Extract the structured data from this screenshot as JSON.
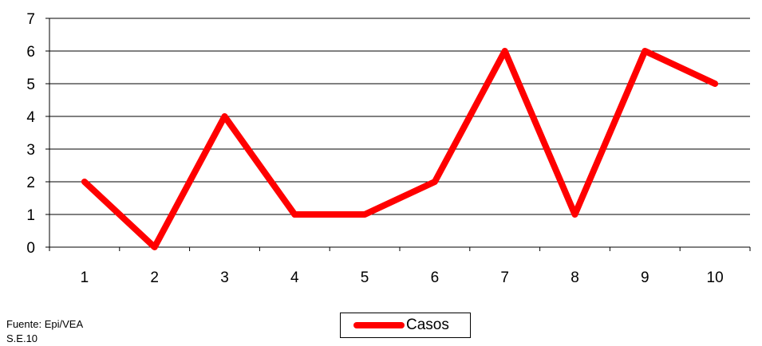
{
  "chart_data": {
    "type": "line",
    "x": [
      "1",
      "2",
      "3",
      "4",
      "5",
      "6",
      "7",
      "8",
      "9",
      "10"
    ],
    "series": [
      {
        "name": "Casos",
        "values": [
          2,
          0,
          4,
          1,
          1,
          2,
          6,
          1,
          6,
          5
        ],
        "color": "#ff0000"
      }
    ],
    "yticks": [
      "0",
      "1",
      "2",
      "3",
      "4",
      "5",
      "6",
      "7"
    ],
    "ylim": [
      0,
      7
    ],
    "grid": true,
    "legend_position": "bottom-center"
  },
  "source": {
    "line1": "Fuente: Epi/VEA",
    "line2": "S.E.10"
  }
}
